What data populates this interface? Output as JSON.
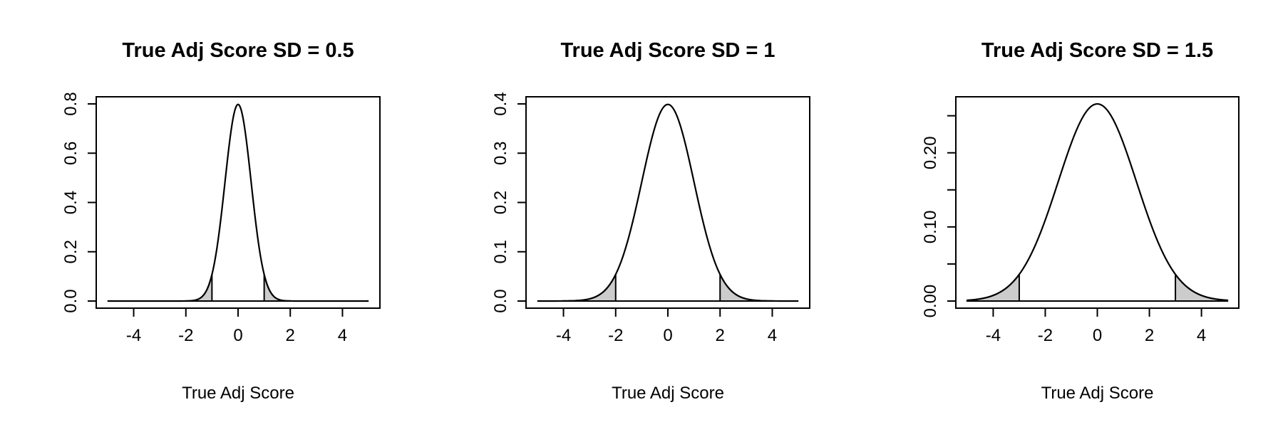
{
  "chart_data": [
    {
      "type": "area",
      "title": "True Adj Score SD = 0.5",
      "xlabel": "True Adj Score",
      "ylabel": "",
      "sd": 0.5,
      "cutoff": 1,
      "xlim": [
        -5,
        5
      ],
      "ylim": [
        0,
        0.8
      ],
      "xticks": [
        -4,
        -2,
        0,
        2,
        4
      ],
      "yticks": [
        0.0,
        0.2,
        0.4,
        0.6,
        0.8
      ],
      "ytick_labels": [
        "0.0",
        "0.2",
        "0.4",
        "0.6",
        "0.8"
      ],
      "shaded_tails": true,
      "grid": false
    },
    {
      "type": "area",
      "title": "True Adj Score SD = 1",
      "xlabel": "True Adj Score",
      "ylabel": "",
      "sd": 1,
      "cutoff": 2,
      "xlim": [
        -5,
        5
      ],
      "ylim": [
        0,
        0.4
      ],
      "xticks": [
        -4,
        -2,
        0,
        2,
        4
      ],
      "yticks": [
        0.0,
        0.1,
        0.2,
        0.3,
        0.4
      ],
      "ytick_labels": [
        "0.0",
        "0.1",
        "0.2",
        "0.3",
        "0.4"
      ],
      "shaded_tails": true,
      "grid": false
    },
    {
      "type": "area",
      "title": "True Adj Score SD = 1.5",
      "xlabel": "True Adj Score",
      "ylabel": "",
      "sd": 1.5,
      "cutoff": 3,
      "xlim": [
        -5,
        5
      ],
      "ylim": [
        0,
        0.266
      ],
      "xticks": [
        -4,
        -2,
        0,
        2,
        4
      ],
      "yticks": [
        0.0,
        0.05,
        0.1,
        0.15,
        0.2,
        0.25
      ],
      "ytick_labels": [
        "0.00",
        "",
        "0.10",
        "",
        "0.20",
        ""
      ],
      "shaded_tails": true,
      "grid": false
    }
  ]
}
